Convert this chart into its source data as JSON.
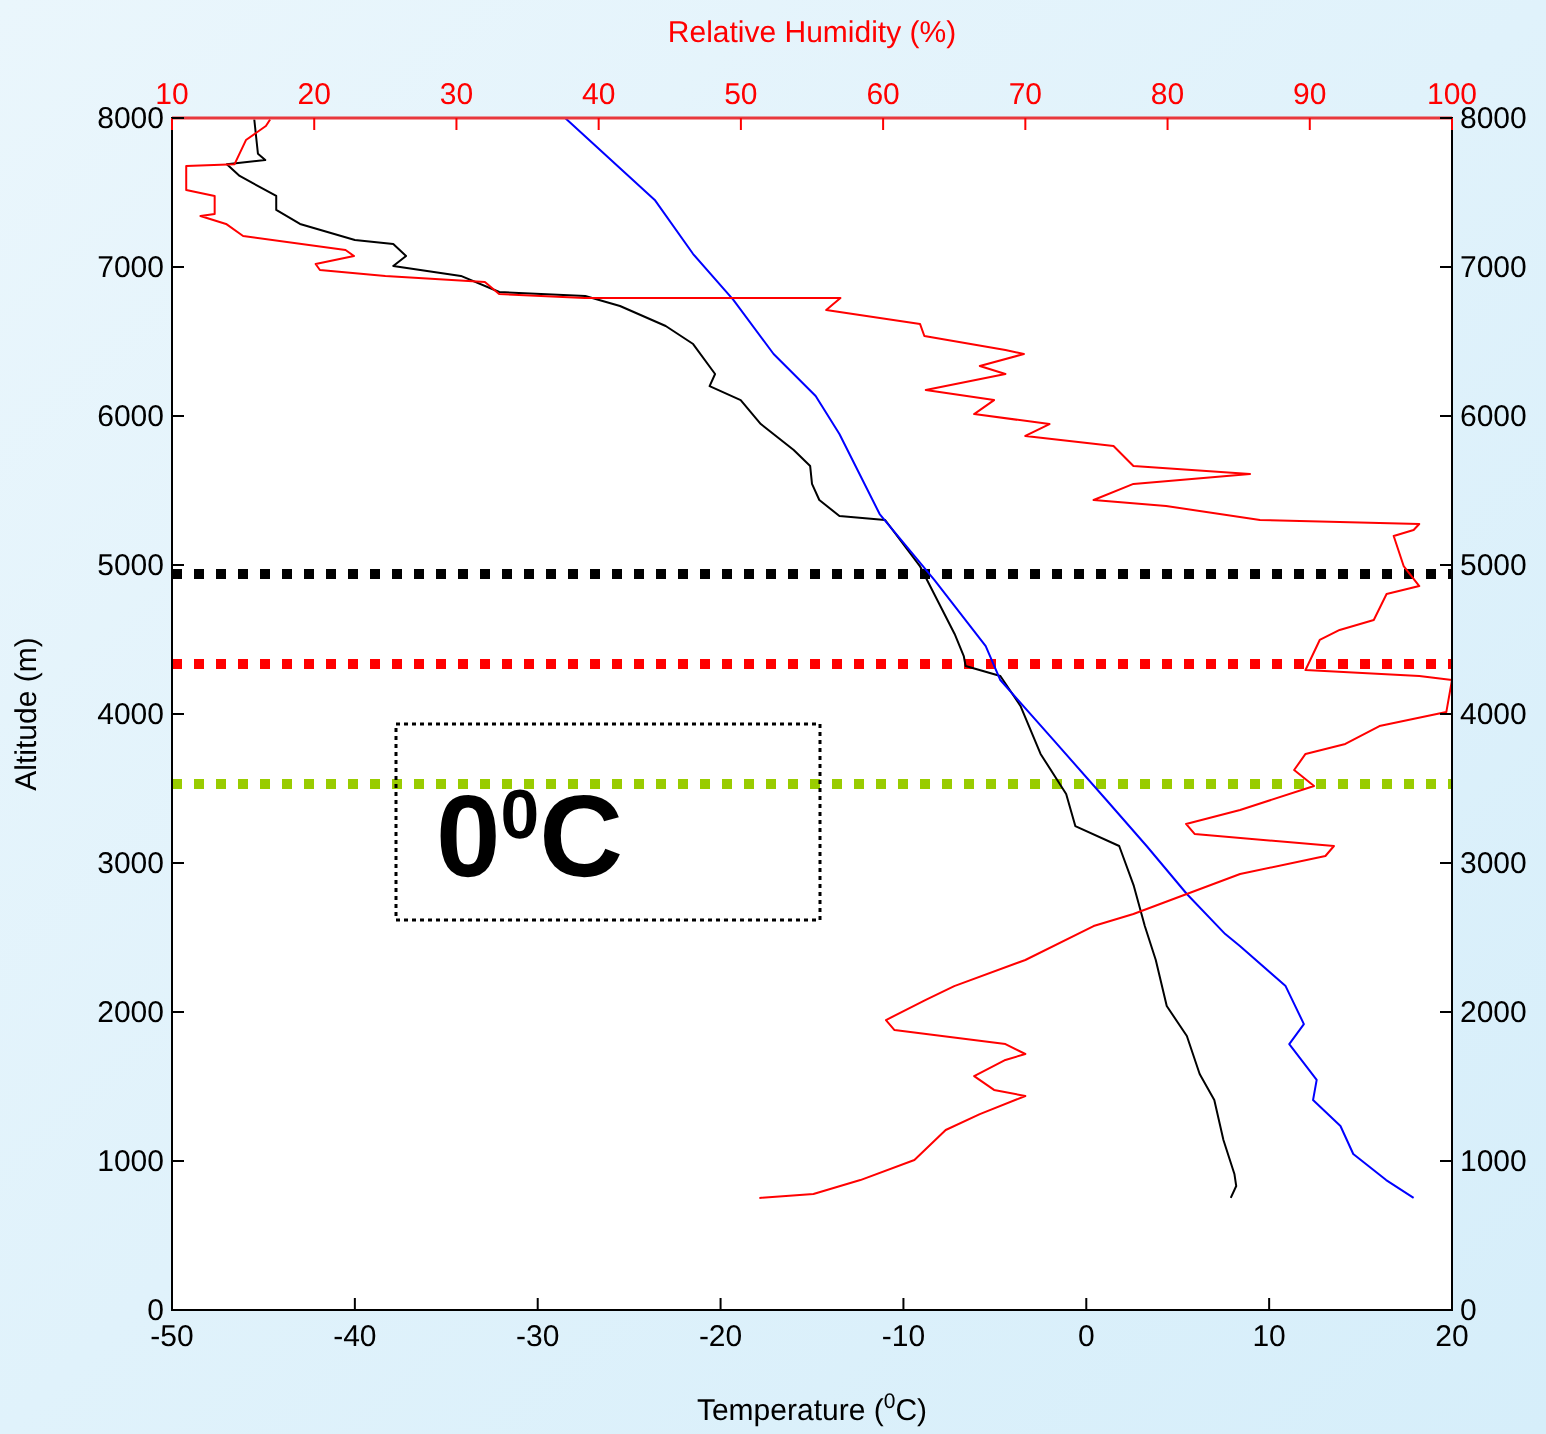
{
  "chart_data": {
    "type": "line",
    "xlabel": "Temperature ($^{0}$C)",
    "ylabel": "Altitude (m)",
    "x2label": "Relative Humidity (%)",
    "xlim": [
      -50,
      20
    ],
    "xticks": [
      -50,
      -40,
      -30,
      -20,
      -10,
      0,
      10,
      20
    ],
    "x2lim": [
      10,
      100
    ],
    "x2ticks": [
      10,
      20,
      30,
      40,
      50,
      60,
      70,
      80,
      90,
      100
    ],
    "ylim": [
      0,
      8000
    ],
    "yticks": [
      0,
      1000,
      2000,
      3000,
      4000,
      5000,
      6000,
      7000,
      8000
    ],
    "y2lim": [
      0,
      8000
    ],
    "y2ticks": [
      0,
      1000,
      2000,
      3000,
      4000,
      5000,
      6000,
      7000,
      8000
    ],
    "grid": false,
    "line_style": "solid",
    "series": [
      {
        "color": "#000000",
        "x": [
          -45.5,
          -45.3,
          -44.9,
          -47,
          -46.3,
          -44.3,
          -44.3,
          -43,
          -40,
          -37.9,
          -37.2,
          -37.9,
          -34.2,
          -32.1,
          -27.4,
          -25.5,
          -23,
          -21.5,
          -20.3,
          -20.6,
          -18.9,
          -17.8,
          -16,
          -15.1,
          -15,
          -14.6,
          -13.5,
          -11,
          -9.1,
          -7.2,
          -6.7,
          -6.6,
          -4.7,
          -3.6,
          -2.5,
          -1.1,
          -0.6,
          1.8,
          2.6,
          3.2,
          3.8,
          4.4,
          5.5,
          6.2,
          7,
          7.5,
          8.1,
          8.2,
          7.9
        ],
        "values": [
          7990,
          7760,
          7718,
          7690,
          7611,
          7477,
          7383,
          7289,
          7181,
          7154,
          7074,
          7007,
          6940,
          6832,
          6805,
          6738,
          6604,
          6483,
          6282,
          6201,
          6107,
          5946,
          5772,
          5664,
          5544,
          5436,
          5329,
          5302,
          4993,
          4537,
          4389,
          4322,
          4255,
          4054,
          3732,
          3463,
          3248,
          3114,
          2846,
          2577,
          2349,
          2040,
          1839,
          1584,
          1409,
          1141,
          913,
          832,
          752
        ]
      },
      {
        "color": "#0000ff",
        "x": [
          -28.5,
          -23.6,
          -21.5,
          -19.3,
          -17.1,
          -14.8,
          -13.5,
          -11.3,
          -8.3,
          -5.5,
          -4.7,
          -1.8,
          1.1,
          3.3,
          5.5,
          7.6,
          8.4,
          10.9,
          11.9,
          11.1,
          12.6,
          12.4,
          13.9,
          14.6,
          16.4,
          17.9
        ],
        "values": [
          8000,
          7450,
          7087,
          6779,
          6416,
          6134,
          5879,
          5342,
          4899,
          4456,
          4228,
          3826,
          3423,
          3114,
          2792,
          2523,
          2443,
          2174,
          1919,
          1785,
          1544,
          1409,
          1235,
          1047,
          872,
          752
        ]
      },
      {
        "color": "#ff0000",
        "axis": "x2",
        "x": [
          16.9,
          16.6,
          15.2,
          14.4,
          11,
          11,
          13,
          13,
          12,
          13.8,
          15,
          22.2,
          22.8,
          20.1,
          20.4,
          25,
          32,
          33,
          39,
          55.6,
          57,
          56,
          62.6,
          62.9,
          68.6,
          69.9,
          66.8,
          68.6,
          63,
          67.8,
          66.4,
          71.7,
          70,
          76.2,
          77.6,
          85.8,
          77.6,
          74.8,
          79.9,
          86.5,
          97.7,
          97.3,
          95.9,
          96.6,
          97.7,
          95.4,
          94.5,
          92.1,
          90.7,
          89.7,
          97.7,
          100,
          99.6,
          94.9,
          92.5,
          89.7,
          88.9,
          90.3,
          85.1,
          81.3,
          81.9,
          91.7,
          91.1,
          85.1,
          77.6,
          74.8,
          70,
          65,
          63,
          60.2,
          60.8,
          68.6,
          70,
          68.6,
          66.4,
          67.8,
          70,
          66.8,
          64.4,
          62.2,
          58.4,
          55.1,
          51.3
        ],
        "values": [
          7990,
          7946,
          7852,
          7690,
          7678,
          7517,
          7477,
          7356,
          7342,
          7289,
          7208,
          7114,
          7074,
          7020,
          6980,
          6940,
          6899,
          6819,
          6792,
          6792,
          6792,
          6711,
          6617,
          6537,
          6443,
          6416,
          6336,
          6282,
          6174,
          6107,
          6013,
          5946,
          5866,
          5799,
          5664,
          5611,
          5544,
          5436,
          5396,
          5302,
          5275,
          5235,
          5195,
          4993,
          4859,
          4805,
          4631,
          4564,
          4497,
          4295,
          4255,
          4228,
          4013,
          3919,
          3799,
          3732,
          3624,
          3517,
          3356,
          3262,
          3195,
          3114,
          3047,
          2926,
          2658,
          2577,
          2349,
          2174,
          2081,
          1946,
          1879,
          1785,
          1718,
          1678,
          1570,
          1477,
          1436,
          1315,
          1208,
          1007,
          872,
          779,
          752
        ]
      }
    ],
    "ref_lines": [
      {
        "axis": "y",
        "value": 4940,
        "color": "#000000",
        "line_style": "dotted"
      },
      {
        "axis": "y",
        "value": 4336,
        "color": "#ff0000",
        "line_style": "dotted"
      },
      {
        "axis": "y",
        "value": 3530,
        "color": "#99cc00",
        "line_style": "dotted"
      }
    ],
    "annotations": [
      "0$^{0}$C"
    ]
  }
}
